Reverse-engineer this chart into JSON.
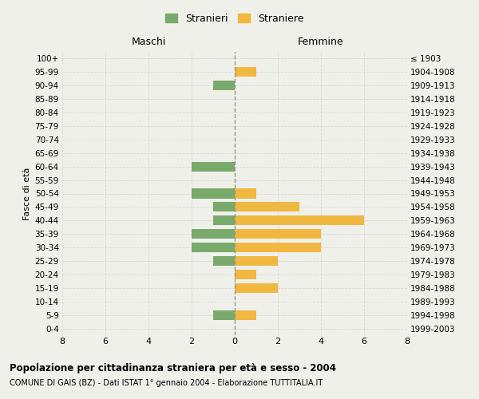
{
  "age_groups": [
    "0-4",
    "5-9",
    "10-14",
    "15-19",
    "20-24",
    "25-29",
    "30-34",
    "35-39",
    "40-44",
    "45-49",
    "50-54",
    "55-59",
    "60-64",
    "65-69",
    "70-74",
    "75-79",
    "80-84",
    "85-89",
    "90-94",
    "95-99",
    "100+"
  ],
  "birth_years": [
    "1999-2003",
    "1994-1998",
    "1989-1993",
    "1984-1988",
    "1979-1983",
    "1974-1978",
    "1969-1973",
    "1964-1968",
    "1959-1963",
    "1954-1958",
    "1949-1953",
    "1944-1948",
    "1939-1943",
    "1934-1938",
    "1929-1933",
    "1924-1928",
    "1919-1923",
    "1914-1918",
    "1909-1913",
    "1904-1908",
    "≤ 1903"
  ],
  "males": [
    0,
    1,
    0,
    0,
    0,
    1,
    2,
    2,
    1,
    1,
    2,
    0,
    2,
    0,
    0,
    0,
    0,
    0,
    1,
    0,
    0
  ],
  "females": [
    0,
    1,
    0,
    2,
    1,
    2,
    4,
    4,
    6,
    3,
    1,
    0,
    0,
    0,
    0,
    0,
    0,
    0,
    0,
    1,
    0
  ],
  "male_color": "#7aaa6b",
  "female_color": "#f0b840",
  "background_color": "#f0f0eb",
  "grid_color": "#d8d8d8",
  "center_line_color": "#999988",
  "title": "Popolazione per cittadinanza straniera per età e sesso - 2004",
  "subtitle": "COMUNE DI GAIS (BZ) - Dati ISTAT 1° gennaio 2004 - Elaborazione TUTTITALIA.IT",
  "xlim": 8,
  "legend_male": "Stranieri",
  "legend_female": "Straniere",
  "label_fasce": "Fasce di età",
  "label_maschi": "Maschi",
  "label_femmine": "Femmine"
}
